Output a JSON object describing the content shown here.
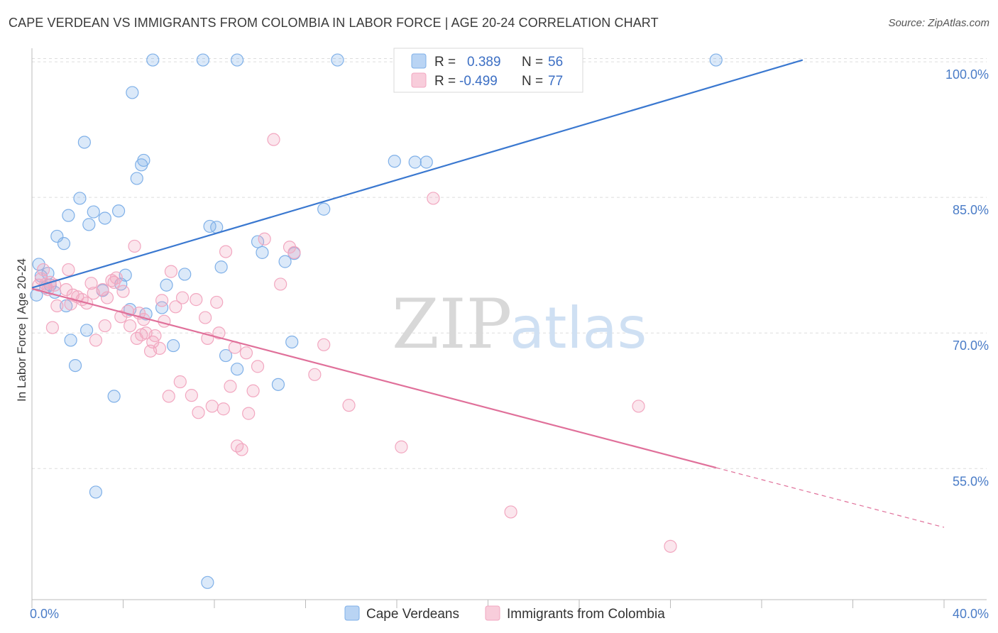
{
  "title": "CAPE VERDEAN VS IMMIGRANTS FROM COLOMBIA IN LABOR FORCE | AGE 20-24 CORRELATION CHART",
  "source": "Source: ZipAtlas.com",
  "watermark": {
    "zip": "ZIP",
    "atlas": "atlas"
  },
  "colors": {
    "blue": "#7fb0e8",
    "blue_line": "#3a78d0",
    "pink": "#f2a7c0",
    "pink_line": "#e0709a",
    "grid": "#dddddd"
  },
  "legend": {
    "rows": [
      {
        "r_label": "R =",
        "r_value": "0.389",
        "n_label": "N =",
        "n_value": "56"
      },
      {
        "r_label": "R =",
        "r_value": "-0.499",
        "n_label": "N =",
        "n_value": "77"
      }
    ]
  },
  "chart_data": {
    "type": "scatter",
    "xlabel": "",
    "ylabel": "In Labor Force | Age 20-24",
    "xlim": [
      0,
      40
    ],
    "ylim": [
      40.5,
      101.5
    ],
    "x_tick_labels": [
      {
        "value": 0,
        "label": "0.0%"
      },
      {
        "value": 40,
        "label": "40.0%"
      }
    ],
    "y_tick_labels": [
      {
        "value": 55,
        "label": "55.0%"
      },
      {
        "value": 70,
        "label": "70.0%"
      },
      {
        "value": 85,
        "label": "85.0%"
      },
      {
        "value": 100,
        "label": "100.0%"
      }
    ],
    "grid": true,
    "series": [
      {
        "name": "Cape Verdeans",
        "color": "#7fb0e8",
        "points": [
          [
            0.2,
            74.2
          ],
          [
            0.3,
            77.6
          ],
          [
            0.4,
            76.3
          ],
          [
            0.6,
            75.0
          ],
          [
            0.7,
            76.6
          ],
          [
            0.8,
            75.3
          ],
          [
            1.0,
            74.5
          ],
          [
            1.1,
            80.7
          ],
          [
            1.4,
            79.9
          ],
          [
            1.5,
            73.0
          ],
          [
            1.6,
            83.0
          ],
          [
            1.7,
            69.2
          ],
          [
            1.9,
            66.4
          ],
          [
            2.1,
            84.9
          ],
          [
            2.3,
            91.1
          ],
          [
            2.4,
            70.3
          ],
          [
            2.5,
            82.0
          ],
          [
            2.7,
            83.4
          ],
          [
            2.8,
            52.4
          ],
          [
            3.1,
            74.7
          ],
          [
            3.2,
            82.7
          ],
          [
            3.6,
            63.0
          ],
          [
            3.8,
            83.5
          ],
          [
            3.9,
            75.4
          ],
          [
            4.1,
            76.4
          ],
          [
            4.3,
            72.6
          ],
          [
            4.4,
            96.6
          ],
          [
            4.6,
            87.1
          ],
          [
            4.8,
            88.6
          ],
          [
            4.9,
            89.1
          ],
          [
            5.0,
            72.1
          ],
          [
            5.3,
            100.2
          ],
          [
            5.7,
            72.8
          ],
          [
            5.9,
            75.3
          ],
          [
            6.2,
            68.6
          ],
          [
            6.7,
            76.5
          ],
          [
            7.5,
            100.2
          ],
          [
            7.7,
            42.4
          ],
          [
            7.8,
            81.8
          ],
          [
            8.1,
            81.7
          ],
          [
            8.3,
            77.3
          ],
          [
            8.5,
            67.5
          ],
          [
            9.0,
            66.0
          ],
          [
            9.0,
            100.2
          ],
          [
            9.9,
            80.1
          ],
          [
            10.1,
            78.9
          ],
          [
            10.8,
            64.3
          ],
          [
            11.1,
            77.9
          ],
          [
            11.4,
            69.0
          ],
          [
            11.5,
            78.8
          ],
          [
            12.8,
            83.7
          ],
          [
            13.4,
            100.2
          ],
          [
            15.9,
            89.0
          ],
          [
            16.8,
            88.9
          ],
          [
            17.3,
            88.9
          ],
          [
            30.0,
            100.2
          ]
        ]
      },
      {
        "name": "Immigrants from Colombia",
        "color": "#f2a7c0",
        "points": [
          [
            0.3,
            75.3
          ],
          [
            0.4,
            76.0
          ],
          [
            0.5,
            77.0
          ],
          [
            0.6,
            75.4
          ],
          [
            0.7,
            74.8
          ],
          [
            0.8,
            75.6
          ],
          [
            0.9,
            70.6
          ],
          [
            1.0,
            75.3
          ],
          [
            1.1,
            73.0
          ],
          [
            1.5,
            74.8
          ],
          [
            1.6,
            77.0
          ],
          [
            1.7,
            73.2
          ],
          [
            1.8,
            74.2
          ],
          [
            2.0,
            74.0
          ],
          [
            2.2,
            73.7
          ],
          [
            2.4,
            73.3
          ],
          [
            2.6,
            75.5
          ],
          [
            2.7,
            74.4
          ],
          [
            2.8,
            69.2
          ],
          [
            3.1,
            74.8
          ],
          [
            3.2,
            70.8
          ],
          [
            3.3,
            73.9
          ],
          [
            3.5,
            75.8
          ],
          [
            3.6,
            75.6
          ],
          [
            3.7,
            76.1
          ],
          [
            3.9,
            71.8
          ],
          [
            4.0,
            74.6
          ],
          [
            4.2,
            72.4
          ],
          [
            4.3,
            70.8
          ],
          [
            4.5,
            79.6
          ],
          [
            4.6,
            69.4
          ],
          [
            4.7,
            72.2
          ],
          [
            4.8,
            69.8
          ],
          [
            4.9,
            71.5
          ],
          [
            5.0,
            70.0
          ],
          [
            5.2,
            68.0
          ],
          [
            5.3,
            69.0
          ],
          [
            5.4,
            69.7
          ],
          [
            5.6,
            68.3
          ],
          [
            5.7,
            73.6
          ],
          [
            5.8,
            71.3
          ],
          [
            6.0,
            63.0
          ],
          [
            6.1,
            76.8
          ],
          [
            6.3,
            72.9
          ],
          [
            6.5,
            64.6
          ],
          [
            6.6,
            73.9
          ],
          [
            7.0,
            63.1
          ],
          [
            7.2,
            73.7
          ],
          [
            7.3,
            61.2
          ],
          [
            7.6,
            71.7
          ],
          [
            7.7,
            69.4
          ],
          [
            7.9,
            61.9
          ],
          [
            8.1,
            73.4
          ],
          [
            8.2,
            70.0
          ],
          [
            8.4,
            61.6
          ],
          [
            8.5,
            79.0
          ],
          [
            8.7,
            64.1
          ],
          [
            8.9,
            68.4
          ],
          [
            9.0,
            57.5
          ],
          [
            9.2,
            57.1
          ],
          [
            9.4,
            67.8
          ],
          [
            9.5,
            61.1
          ],
          [
            9.7,
            63.6
          ],
          [
            9.9,
            66.3
          ],
          [
            10.2,
            80.4
          ],
          [
            10.6,
            91.4
          ],
          [
            10.9,
            75.4
          ],
          [
            11.3,
            79.5
          ],
          [
            11.5,
            78.9
          ],
          [
            12.4,
            65.4
          ],
          [
            12.8,
            68.7
          ],
          [
            13.9,
            62.0
          ],
          [
            16.2,
            57.4
          ],
          [
            17.6,
            84.9
          ],
          [
            21.0,
            50.2
          ],
          [
            26.6,
            61.9
          ],
          [
            28.0,
            46.4
          ]
        ]
      }
    ],
    "trendlines": [
      {
        "series": "Cape Verdeans",
        "x1": 0,
        "y1": 75.0,
        "x2": 33.8,
        "y2": 100.2,
        "dashed_to": null
      },
      {
        "series": "Immigrants from Colombia",
        "x1": 0,
        "y1": 74.9,
        "x2": 30.0,
        "y2": 55.1,
        "dashed_to": {
          "x": 40,
          "y": 48.5
        }
      }
    ]
  }
}
